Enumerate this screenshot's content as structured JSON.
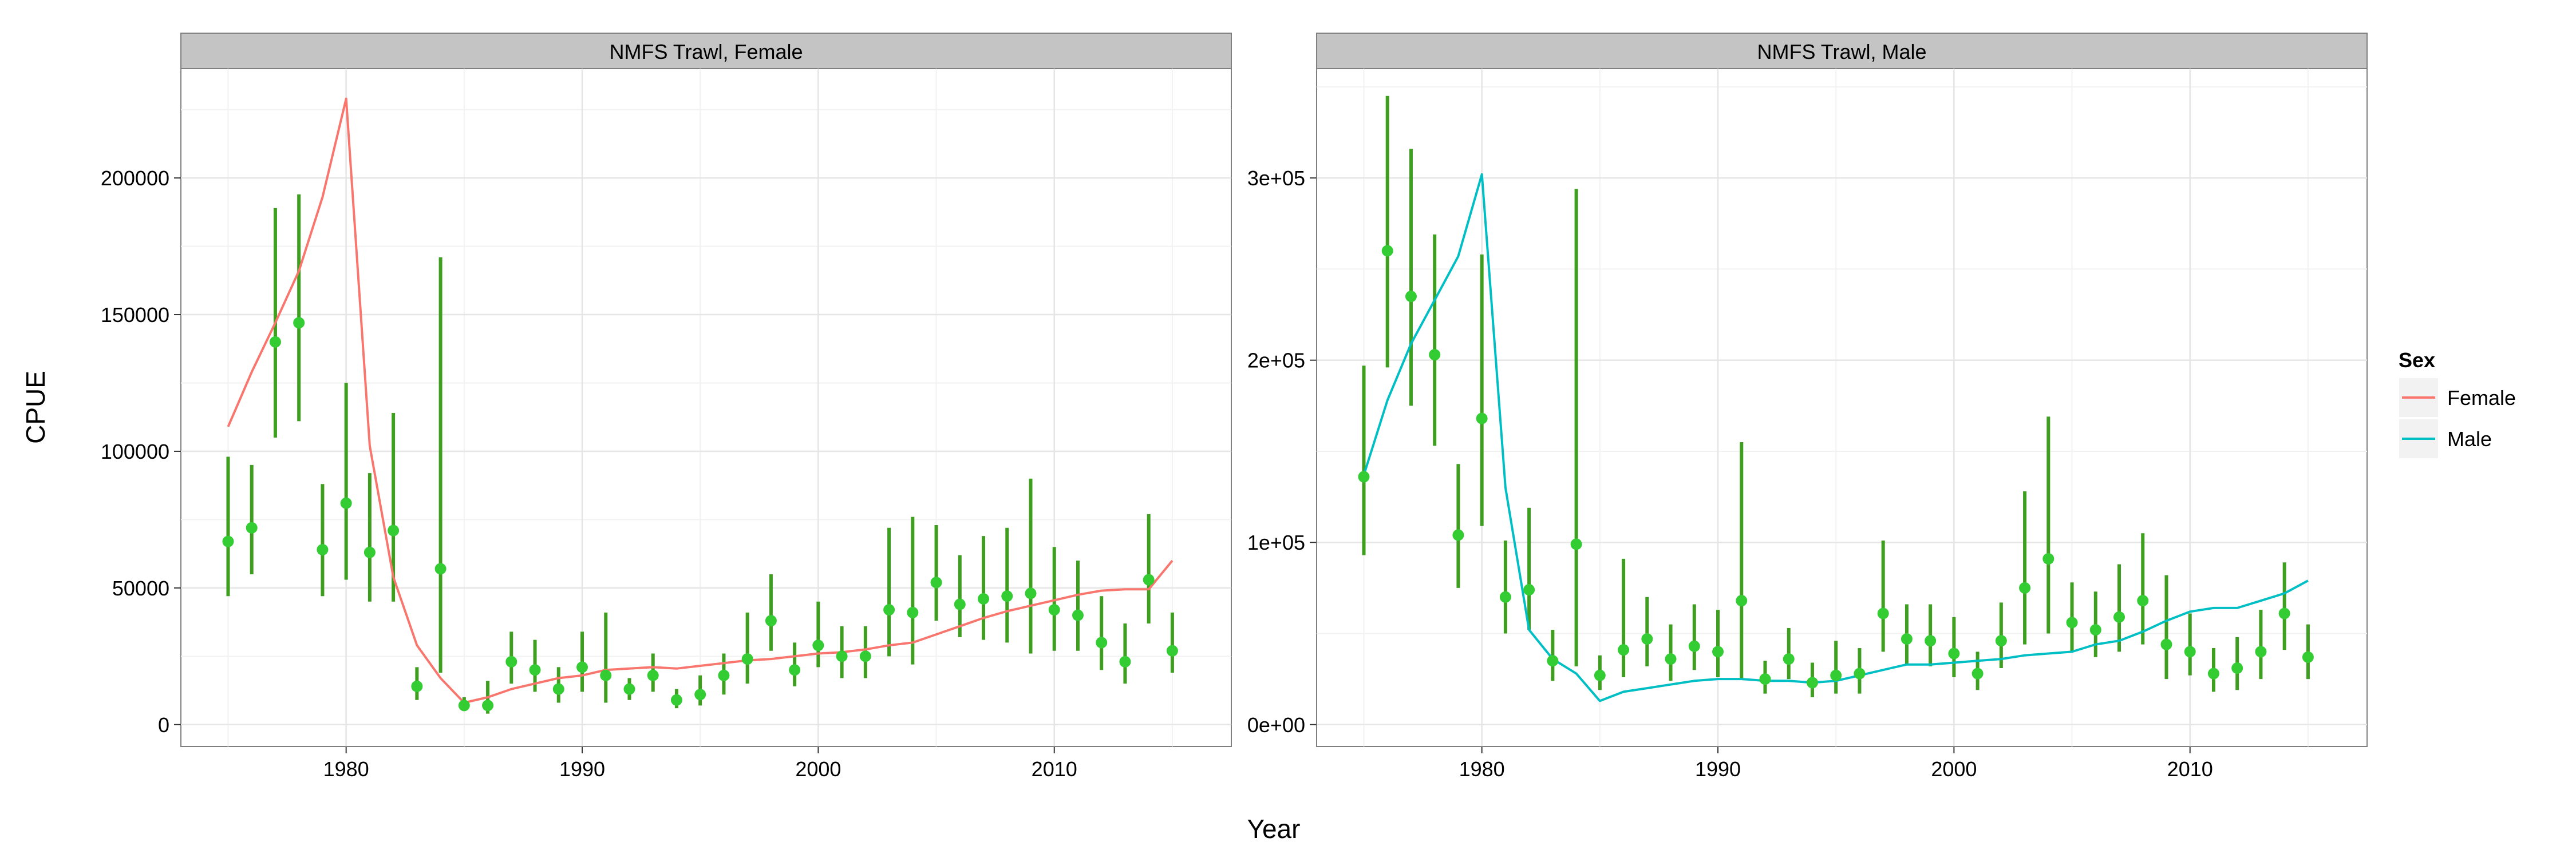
{
  "figure": {
    "xlabel": "Year",
    "ylabel": "CPUE",
    "legend_placement": "right"
  },
  "legend": {
    "title": "Sex",
    "items": [
      {
        "label": "Female",
        "color": "#F8766D"
      },
      {
        "label": "Male",
        "color": "#00BFC4"
      }
    ]
  },
  "style": {
    "point_color": "#33CC33",
    "errorbar_color": "#3E9E1F",
    "panel_bg": "#FFFFFF",
    "strip_bg": "#C4C4C4",
    "grid": true
  },
  "chart_data": [
    {
      "type": "scatter",
      "title": "NMFS Trawl, Female",
      "xlim": [
        1973,
        2017.5
      ],
      "ylim": [
        -8000,
        240000
      ],
      "x_ticks": [
        1980,
        1990,
        2000,
        2010
      ],
      "y_ticks": [
        0,
        50000,
        100000,
        150000,
        200000
      ],
      "y_tick_labels": [
        "0",
        "50000",
        "100000",
        "150000",
        "200000"
      ],
      "observed": {
        "x": [
          1975,
          1976,
          1977,
          1978,
          1979,
          1980,
          1981,
          1982,
          1983,
          1984,
          1985,
          1986,
          1987,
          1988,
          1989,
          1990,
          1991,
          1992,
          1993,
          1994,
          1995,
          1996,
          1997,
          1998,
          1999,
          2000,
          2001,
          2002,
          2003,
          2004,
          2005,
          2006,
          2007,
          2008,
          2009,
          2010,
          2011,
          2012,
          2013,
          2014,
          2015
        ],
        "y": [
          67000,
          72000,
          140000,
          147000,
          64000,
          81000,
          63000,
          71000,
          14000,
          57000,
          7000,
          7000,
          23000,
          20000,
          13000,
          21000,
          18000,
          13000,
          18000,
          9000,
          11000,
          18000,
          24000,
          38000,
          20000,
          29000,
          25000,
          25000,
          42000,
          41000,
          52000,
          44000,
          46000,
          47000,
          48000,
          42000,
          40000,
          30000,
          23000,
          53000,
          27000
        ],
        "lower": [
          47000,
          55000,
          105000,
          111000,
          47000,
          53000,
          45000,
          45000,
          9000,
          19000,
          5000,
          4000,
          15000,
          12000,
          8000,
          12000,
          8000,
          9000,
          12000,
          6000,
          7000,
          11000,
          15000,
          27000,
          14000,
          21000,
          17000,
          17000,
          25000,
          22000,
          38000,
          32000,
          31000,
          30000,
          26000,
          27000,
          27000,
          20000,
          15000,
          37000,
          19000
        ],
        "upper": [
          98000,
          95000,
          189000,
          194000,
          88000,
          125000,
          92000,
          114000,
          21000,
          171000,
          10000,
          16000,
          34000,
          31000,
          21000,
          34000,
          41000,
          17000,
          26000,
          13000,
          18000,
          26000,
          41000,
          55000,
          30000,
          45000,
          36000,
          36000,
          72000,
          76000,
          73000,
          62000,
          69000,
          72000,
          90000,
          65000,
          60000,
          47000,
          37000,
          77000,
          41000
        ]
      },
      "predicted": {
        "name": "Female",
        "x": [
          1975,
          1976,
          1977,
          1978,
          1979,
          1980,
          1981,
          1982,
          1983,
          1984,
          1985,
          1986,
          1987,
          1988,
          1989,
          1990,
          1991,
          1992,
          1993,
          1994,
          1995,
          1996,
          1997,
          1998,
          1999,
          2000,
          2001,
          2002,
          2003,
          2004,
          2005,
          2006,
          2007,
          2008,
          2009,
          2010,
          2011,
          2012,
          2013,
          2014,
          2015
        ],
        "y": [
          109000,
          129000,
          147000,
          166000,
          193000,
          229000,
          102000,
          54000,
          29000,
          17000,
          8000,
          10000,
          13000,
          15000,
          17000,
          18000,
          20000,
          20500,
          21000,
          20500,
          21500,
          22500,
          23500,
          24000,
          25000,
          26000,
          26500,
          27500,
          29000,
          30000,
          33000,
          36000,
          39000,
          41500,
          43500,
          45500,
          47500,
          49000,
          49500,
          49500,
          60000
        ]
      }
    },
    {
      "type": "scatter",
      "title": "NMFS Trawl, Male",
      "xlim": [
        1973,
        2017.5
      ],
      "ylim": [
        -12000,
        360000
      ],
      "x_ticks": [
        1980,
        1990,
        2000,
        2010
      ],
      "y_ticks": [
        0,
        100000,
        200000,
        300000
      ],
      "y_tick_labels": [
        "0e+00",
        "1e+05",
        "2e+05",
        "3e+05"
      ],
      "observed": {
        "x": [
          1975,
          1976,
          1977,
          1978,
          1979,
          1980,
          1981,
          1982,
          1983,
          1984,
          1985,
          1986,
          1987,
          1988,
          1989,
          1990,
          1991,
          1992,
          1993,
          1994,
          1995,
          1996,
          1997,
          1998,
          1999,
          2000,
          2001,
          2002,
          2003,
          2004,
          2005,
          2006,
          2007,
          2008,
          2009,
          2010,
          2011,
          2012,
          2013,
          2014,
          2015
        ],
        "y": [
          136000,
          260000,
          235000,
          203000,
          104000,
          168000,
          70000,
          74000,
          35000,
          99000,
          27000,
          41000,
          47000,
          36000,
          43000,
          40000,
          68000,
          25000,
          36000,
          23000,
          27000,
          28000,
          61000,
          47000,
          46000,
          39000,
          28000,
          46000,
          75000,
          91000,
          56000,
          52000,
          59000,
          68000,
          44000,
          40000,
          28000,
          31000,
          40000,
          61000,
          37000
        ],
        "lower": [
          93000,
          196000,
          175000,
          153000,
          75000,
          109000,
          50000,
          52000,
          24000,
          32000,
          19000,
          26000,
          32000,
          24000,
          30000,
          26000,
          25000,
          17000,
          25000,
          15000,
          17000,
          17000,
          40000,
          33000,
          32000,
          26000,
          19000,
          31000,
          44000,
          50000,
          40000,
          37000,
          40000,
          44000,
          25000,
          27000,
          18000,
          19000,
          25000,
          41000,
          25000
        ],
        "upper": [
          197000,
          345000,
          316000,
          269000,
          143000,
          258000,
          101000,
          119000,
          52000,
          294000,
          38000,
          91000,
          70000,
          55000,
          66000,
          63000,
          155000,
          35000,
          53000,
          34000,
          46000,
          42000,
          101000,
          66000,
          66000,
          59000,
          40000,
          67000,
          128000,
          169000,
          78000,
          73000,
          88000,
          105000,
          82000,
          61000,
          42000,
          48000,
          63000,
          89000,
          55000
        ]
      },
      "predicted": {
        "name": "Male",
        "x": [
          1975,
          1976,
          1977,
          1978,
          1979,
          1980,
          1981,
          1982,
          1983,
          1984,
          1985,
          1986,
          1987,
          1988,
          1989,
          1990,
          1991,
          1992,
          1993,
          1994,
          1995,
          1996,
          1997,
          1998,
          1999,
          2000,
          2001,
          2002,
          2003,
          2004,
          2005,
          2006,
          2007,
          2008,
          2009,
          2010,
          2011,
          2012,
          2013,
          2014,
          2015
        ],
        "y": [
          137000,
          178000,
          209000,
          233000,
          257000,
          302000,
          130000,
          52000,
          36000,
          28000,
          13000,
          18000,
          20000,
          22000,
          24000,
          25000,
          25000,
          24000,
          24000,
          23000,
          24000,
          27000,
          30000,
          33000,
          33000,
          34000,
          35000,
          36000,
          38000,
          39000,
          40000,
          44000,
          46000,
          51000,
          57000,
          62000,
          64000,
          64000,
          68000,
          72000,
          79000
        ]
      }
    }
  ]
}
